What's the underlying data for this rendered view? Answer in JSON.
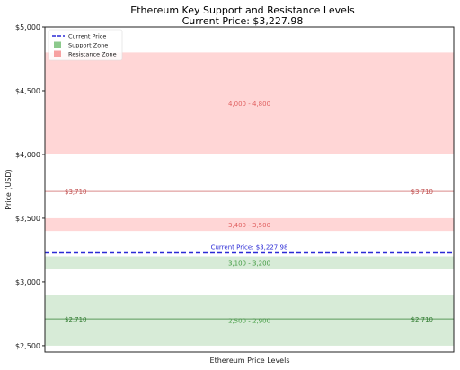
{
  "chart_data": {
    "type": "bar",
    "title": "Ethereum Key Support and Resistance Levels",
    "subtitle": "Current Price: $3,227.98",
    "xlabel": "Ethereum Price Levels",
    "ylabel": "Price (USD)",
    "ylim": [
      2450,
      5000
    ],
    "yticks": [
      2500,
      3000,
      3500,
      4000,
      4500,
      5000
    ],
    "ytick_labels": [
      "$2,500",
      "$3,000",
      "$3,500",
      "$4,000",
      "$4,500",
      "$5,000"
    ],
    "grid": false,
    "legend_position": "top-left",
    "legend": [
      {
        "label": "Current Price",
        "kind": "dashed-line",
        "color": "#2b2bd6"
      },
      {
        "label": "Support Zone",
        "kind": "patch",
        "color": "#8cc98c"
      },
      {
        "label": "Resistance Zone",
        "kind": "patch",
        "color": "#f7a1a1"
      }
    ],
    "current_price": {
      "value": 3227.98,
      "label": "Current Price: $3,227.98",
      "color": "#2b2bd6"
    },
    "zones": [
      {
        "type": "resistance",
        "low": 4000,
        "high": 4800,
        "label": "4,000 - 4,800",
        "fill": "#ffd6d6",
        "text_color": "#e06060"
      },
      {
        "type": "resistance",
        "low": 3400,
        "high": 3500,
        "label": "3,400 - 3,500",
        "fill": "#ffd6d6",
        "text_color": "#e06060"
      },
      {
        "type": "support",
        "low": 3100,
        "high": 3200,
        "label": "3,100 - 3,200",
        "fill": "#d7ebd7",
        "text_color": "#3f9a3f"
      },
      {
        "type": "support",
        "low": 2500,
        "high": 2900,
        "label": "2,500 - 2,900",
        "fill": "#d7ebd7",
        "text_color": "#3f9a3f"
      }
    ],
    "levels": [
      {
        "type": "resistance",
        "value": 3710,
        "label_left": "$3,710",
        "label_right": "$3,710",
        "color": "#d98a8a",
        "text_color": "#c05050"
      },
      {
        "type": "support",
        "value": 2710,
        "label_left": "$2,710",
        "label_right": "$2,710",
        "color": "#5a9a5a",
        "text_color": "#2f7a2f"
      }
    ]
  }
}
